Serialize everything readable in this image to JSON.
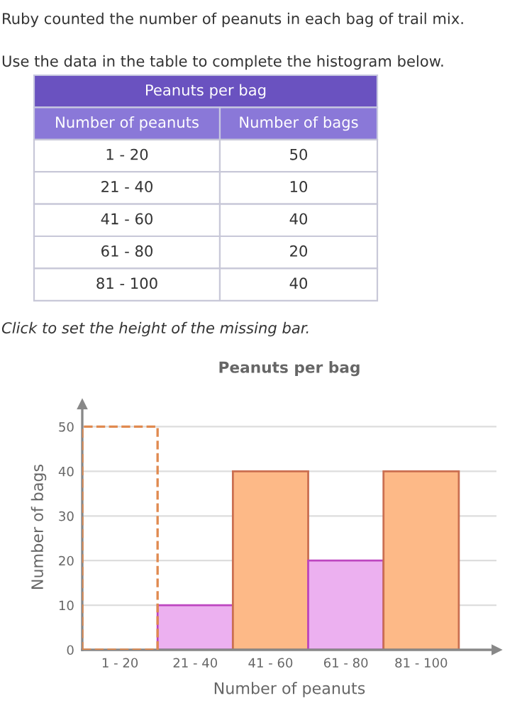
{
  "chart_data": [
    {
      "type": "other",
      "title": "Peanuts per bag",
      "xlabel": "Number of peanuts",
      "ylabel": "Number of bags",
      "annotations": [
        "Ruby counted the number of peanuts in each bag of trail mix.",
        "Use the data in the table to complete the histogram below."
      ],
      "categories": [
        "1 - 20",
        "21 - 40",
        "41 - 60",
        "61 - 80",
        "81 - 100"
      ],
      "values": [
        50,
        10,
        40,
        20,
        40
      ],
      "data_labels": true
    },
    {
      "type": "bar",
      "title": "Peanuts per bag",
      "xlabel": "Number of peanuts",
      "ylabel": "Number of bags",
      "annotations": [
        "Click to set the height of the missing bar."
      ],
      "categories": [
        "1 - 20",
        "21 - 40",
        "41 - 60",
        "61 - 80",
        "81 - 100"
      ],
      "series": [
        {
          "color": "#e08a50",
          "line_style": "dashed",
          "values": [
            50,
            null,
            null,
            null,
            null
          ]
        },
        {
          "colors": [
            null,
            "#ecb0f0",
            "#fdb987",
            "#ecb0f0",
            "#fdb987"
          ],
          "values": [
            null,
            10,
            40,
            20,
            40
          ]
        }
      ],
      "ylim": [
        0,
        55
      ],
      "yticks": [
        0,
        10,
        20,
        30,
        40,
        50
      ],
      "grid": "y"
    }
  ]
}
